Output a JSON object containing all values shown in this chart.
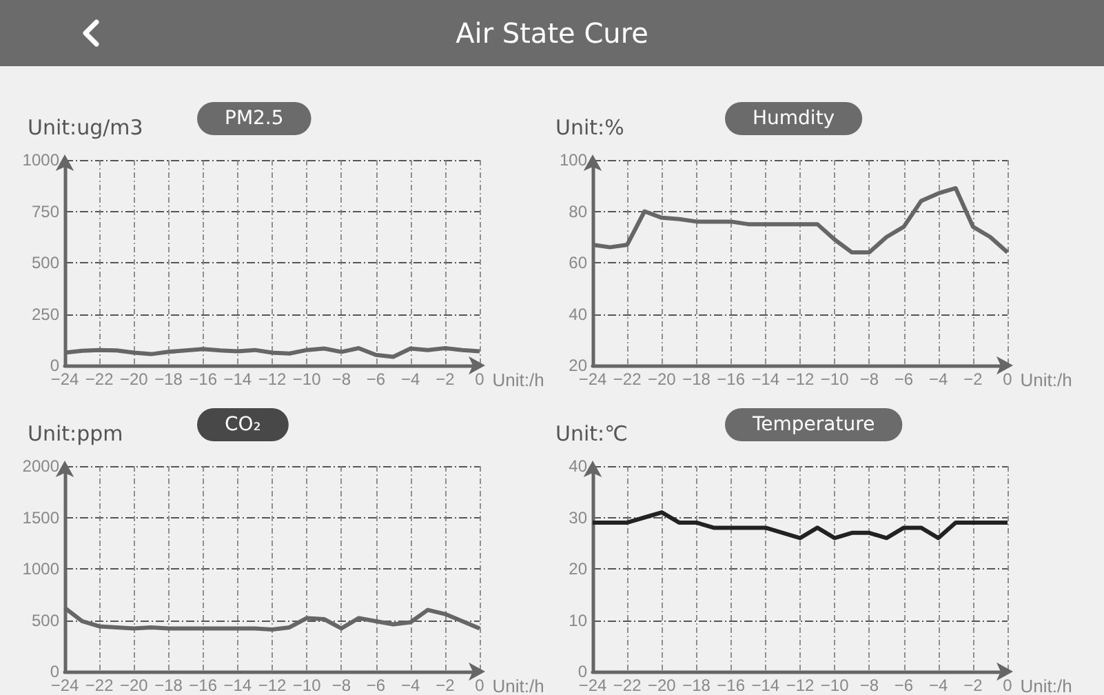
{
  "chart_data": [
    {
      "type": "line",
      "title": "PM2.5",
      "ylabel": "Unit:ug/m3",
      "xlabel": "Unit:/h",
      "annotations": [
        "Air State Cure"
      ],
      "x": [
        -24,
        -23,
        -22,
        -21,
        -20,
        -19,
        -18,
        -17,
        -16,
        -15,
        -14,
        -13,
        -12,
        -11,
        -10,
        -9,
        -8,
        -7,
        -6,
        -5,
        -4,
        -3,
        -2,
        -1,
        0
      ],
      "series": [
        {
          "color": "#666666",
          "values": [
            62,
            71,
            75,
            73,
            62,
            55,
            66,
            73,
            80,
            73,
            69,
            75,
            62,
            58,
            75,
            82,
            66,
            84,
            51,
            42,
            82,
            75,
            84,
            75,
            69
          ]
        }
      ],
      "xlim": [
        -24,
        0
      ],
      "xticks": [
        -24,
        -22,
        -20,
        -18,
        -16,
        -14,
        -12,
        -10,
        -8,
        -6,
        -4,
        -2,
        0
      ],
      "ylim": [
        0,
        1000
      ],
      "yticks": [
        0,
        250,
        500,
        750,
        1000
      ],
      "grid": true,
      "marker": "none",
      "line_style": "solid"
    },
    {
      "type": "line",
      "title": "Humdity",
      "ylabel": "Unit:%",
      "xlabel": "Unit:/h",
      "x": [
        -24,
        -23,
        -22,
        -21,
        -20,
        -19,
        -18,
        -17,
        -16,
        -15,
        -14,
        -13,
        -12,
        -11,
        -10,
        -9,
        -8,
        -7,
        -6,
        -5,
        -4,
        -3,
        -2,
        -1,
        0
      ],
      "series": [
        {
          "color": "#666666",
          "values": [
            67,
            66,
            67,
            80,
            77.5,
            77,
            76,
            76,
            76,
            75,
            75,
            75,
            75,
            75,
            69,
            64,
            64,
            70,
            74,
            84,
            87,
            89,
            74,
            70,
            64
          ]
        }
      ],
      "xlim": [
        -24,
        0
      ],
      "xticks": [
        -24,
        -22,
        -20,
        -18,
        -16,
        -14,
        -12,
        -10,
        -8,
        -6,
        -4,
        -2,
        0
      ],
      "ylim": [
        20,
        100
      ],
      "yticks": [
        20,
        40,
        60,
        80,
        100
      ],
      "grid": true,
      "marker": "none",
      "line_style": "solid"
    },
    {
      "type": "line",
      "title": "CO₂",
      "ylabel": "Unit:ppm",
      "xlabel": "Unit:/h",
      "x": [
        -24,
        -23,
        -22,
        -21,
        -20,
        -19,
        -18,
        -17,
        -16,
        -15,
        -14,
        -13,
        -12,
        -11,
        -10,
        -9,
        -8,
        -7,
        -6,
        -5,
        -4,
        -3,
        -2,
        -1,
        0
      ],
      "series": [
        {
          "color": "#666666",
          "values": [
            620,
            490,
            440,
            430,
            420,
            430,
            420,
            420,
            420,
            420,
            420,
            420,
            410,
            430,
            520,
            510,
            420,
            520,
            490,
            460,
            480,
            600,
            560,
            490,
            420
          ]
        }
      ],
      "xlim": [
        -24,
        0
      ],
      "xticks": [
        -24,
        -22,
        -20,
        -18,
        -16,
        -14,
        -12,
        -10,
        -8,
        -6,
        -4,
        -2,
        0
      ],
      "ylim": [
        0,
        2000
      ],
      "yticks": [
        0,
        500,
        1000,
        1500,
        2000
      ],
      "grid": true,
      "marker": "none",
      "line_style": "solid"
    },
    {
      "type": "line",
      "title": "Temperature",
      "ylabel": "Unit:℃",
      "xlabel": "Unit:/h",
      "x": [
        -24,
        -23,
        -22,
        -21,
        -20,
        -19,
        -18,
        -17,
        -16,
        -15,
        -14,
        -13,
        -12,
        -11,
        -10,
        -9,
        -8,
        -7,
        -6,
        -5,
        -4,
        -3,
        -2,
        -1,
        0
      ],
      "series": [
        {
          "color": "#222222",
          "values": [
            29,
            29,
            29,
            30,
            31,
            29,
            29,
            28,
            28,
            28,
            28,
            27,
            26,
            28,
            26,
            27,
            27,
            26,
            28,
            28,
            26,
            29,
            29,
            29,
            29
          ]
        }
      ],
      "xlim": [
        -24,
        0
      ],
      "xticks": [
        -24,
        -22,
        -20,
        -18,
        -16,
        -14,
        -12,
        -10,
        -8,
        -6,
        -4,
        -2,
        0
      ],
      "ylim": [
        0,
        40
      ],
      "yticks": [
        0,
        10,
        20,
        30,
        40
      ],
      "grid": true,
      "marker": "none",
      "line_style": "solid"
    }
  ]
}
